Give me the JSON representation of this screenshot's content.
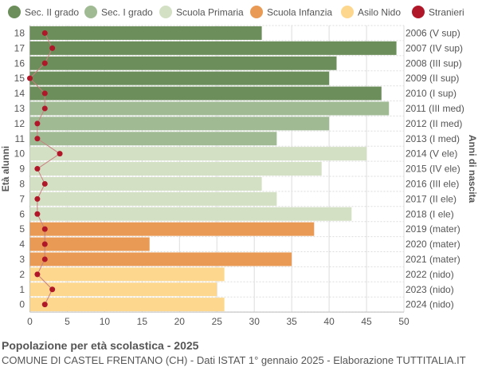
{
  "chart_data": {
    "type": "bar",
    "orientation": "horizontal",
    "title": "Popolazione per età scolastica - 2025",
    "subtitle": "COMUNE DI CASTEL FRENTANO (CH) - Dati ISTAT 1° gennaio 2025 - Elaborazione TUTTITALIA.IT",
    "ylabel": "Età alunni",
    "ylabel_right": "Anni di nascita",
    "xlim": [
      0,
      50
    ],
    "xticks": [
      0,
      5,
      10,
      15,
      20,
      25,
      30,
      35,
      40,
      45,
      50
    ],
    "grid": true,
    "legend_position": "top",
    "legend": [
      {
        "name": "Sec. II grado",
        "color": "#6b8e5a"
      },
      {
        "name": "Sec. I grado",
        "color": "#a0bb94"
      },
      {
        "name": "Scuola Primaria",
        "color": "#d3e0c4"
      },
      {
        "name": "Scuola Infanzia",
        "color": "#e99a55"
      },
      {
        "name": "Asilo Nido",
        "color": "#fdd78d"
      },
      {
        "name": "Stranieri",
        "color": "#b0182a"
      }
    ],
    "categories": [
      "18",
      "17",
      "16",
      "15",
      "14",
      "13",
      "12",
      "11",
      "10",
      "9",
      "8",
      "7",
      "6",
      "5",
      "4",
      "3",
      "2",
      "1",
      "0"
    ],
    "birth_years": [
      "2006 (V sup)",
      "2007 (IV sup)",
      "2008 (III sup)",
      "2009 (II sup)",
      "2010 (I sup)",
      "2011 (III med)",
      "2012 (II med)",
      "2013 (I med)",
      "2014 (V ele)",
      "2015 (IV ele)",
      "2016 (III ele)",
      "2017 (II ele)",
      "2018 (I ele)",
      "2019 (mater)",
      "2020 (mater)",
      "2021 (mater)",
      "2022 (nido)",
      "2023 (nido)",
      "2024 (nido)"
    ],
    "school_level": [
      0,
      0,
      0,
      0,
      0,
      1,
      1,
      1,
      2,
      2,
      2,
      2,
      2,
      3,
      3,
      3,
      4,
      4,
      4
    ],
    "values": [
      31,
      49,
      41,
      40,
      47,
      48,
      40,
      33,
      45,
      39,
      31,
      33,
      43,
      38,
      16,
      35,
      26,
      25,
      26
    ],
    "stranieri": [
      2,
      3,
      2,
      0,
      2,
      2,
      1,
      1,
      4,
      1,
      2,
      1,
      1,
      2,
      2,
      2,
      1,
      3,
      2
    ]
  }
}
